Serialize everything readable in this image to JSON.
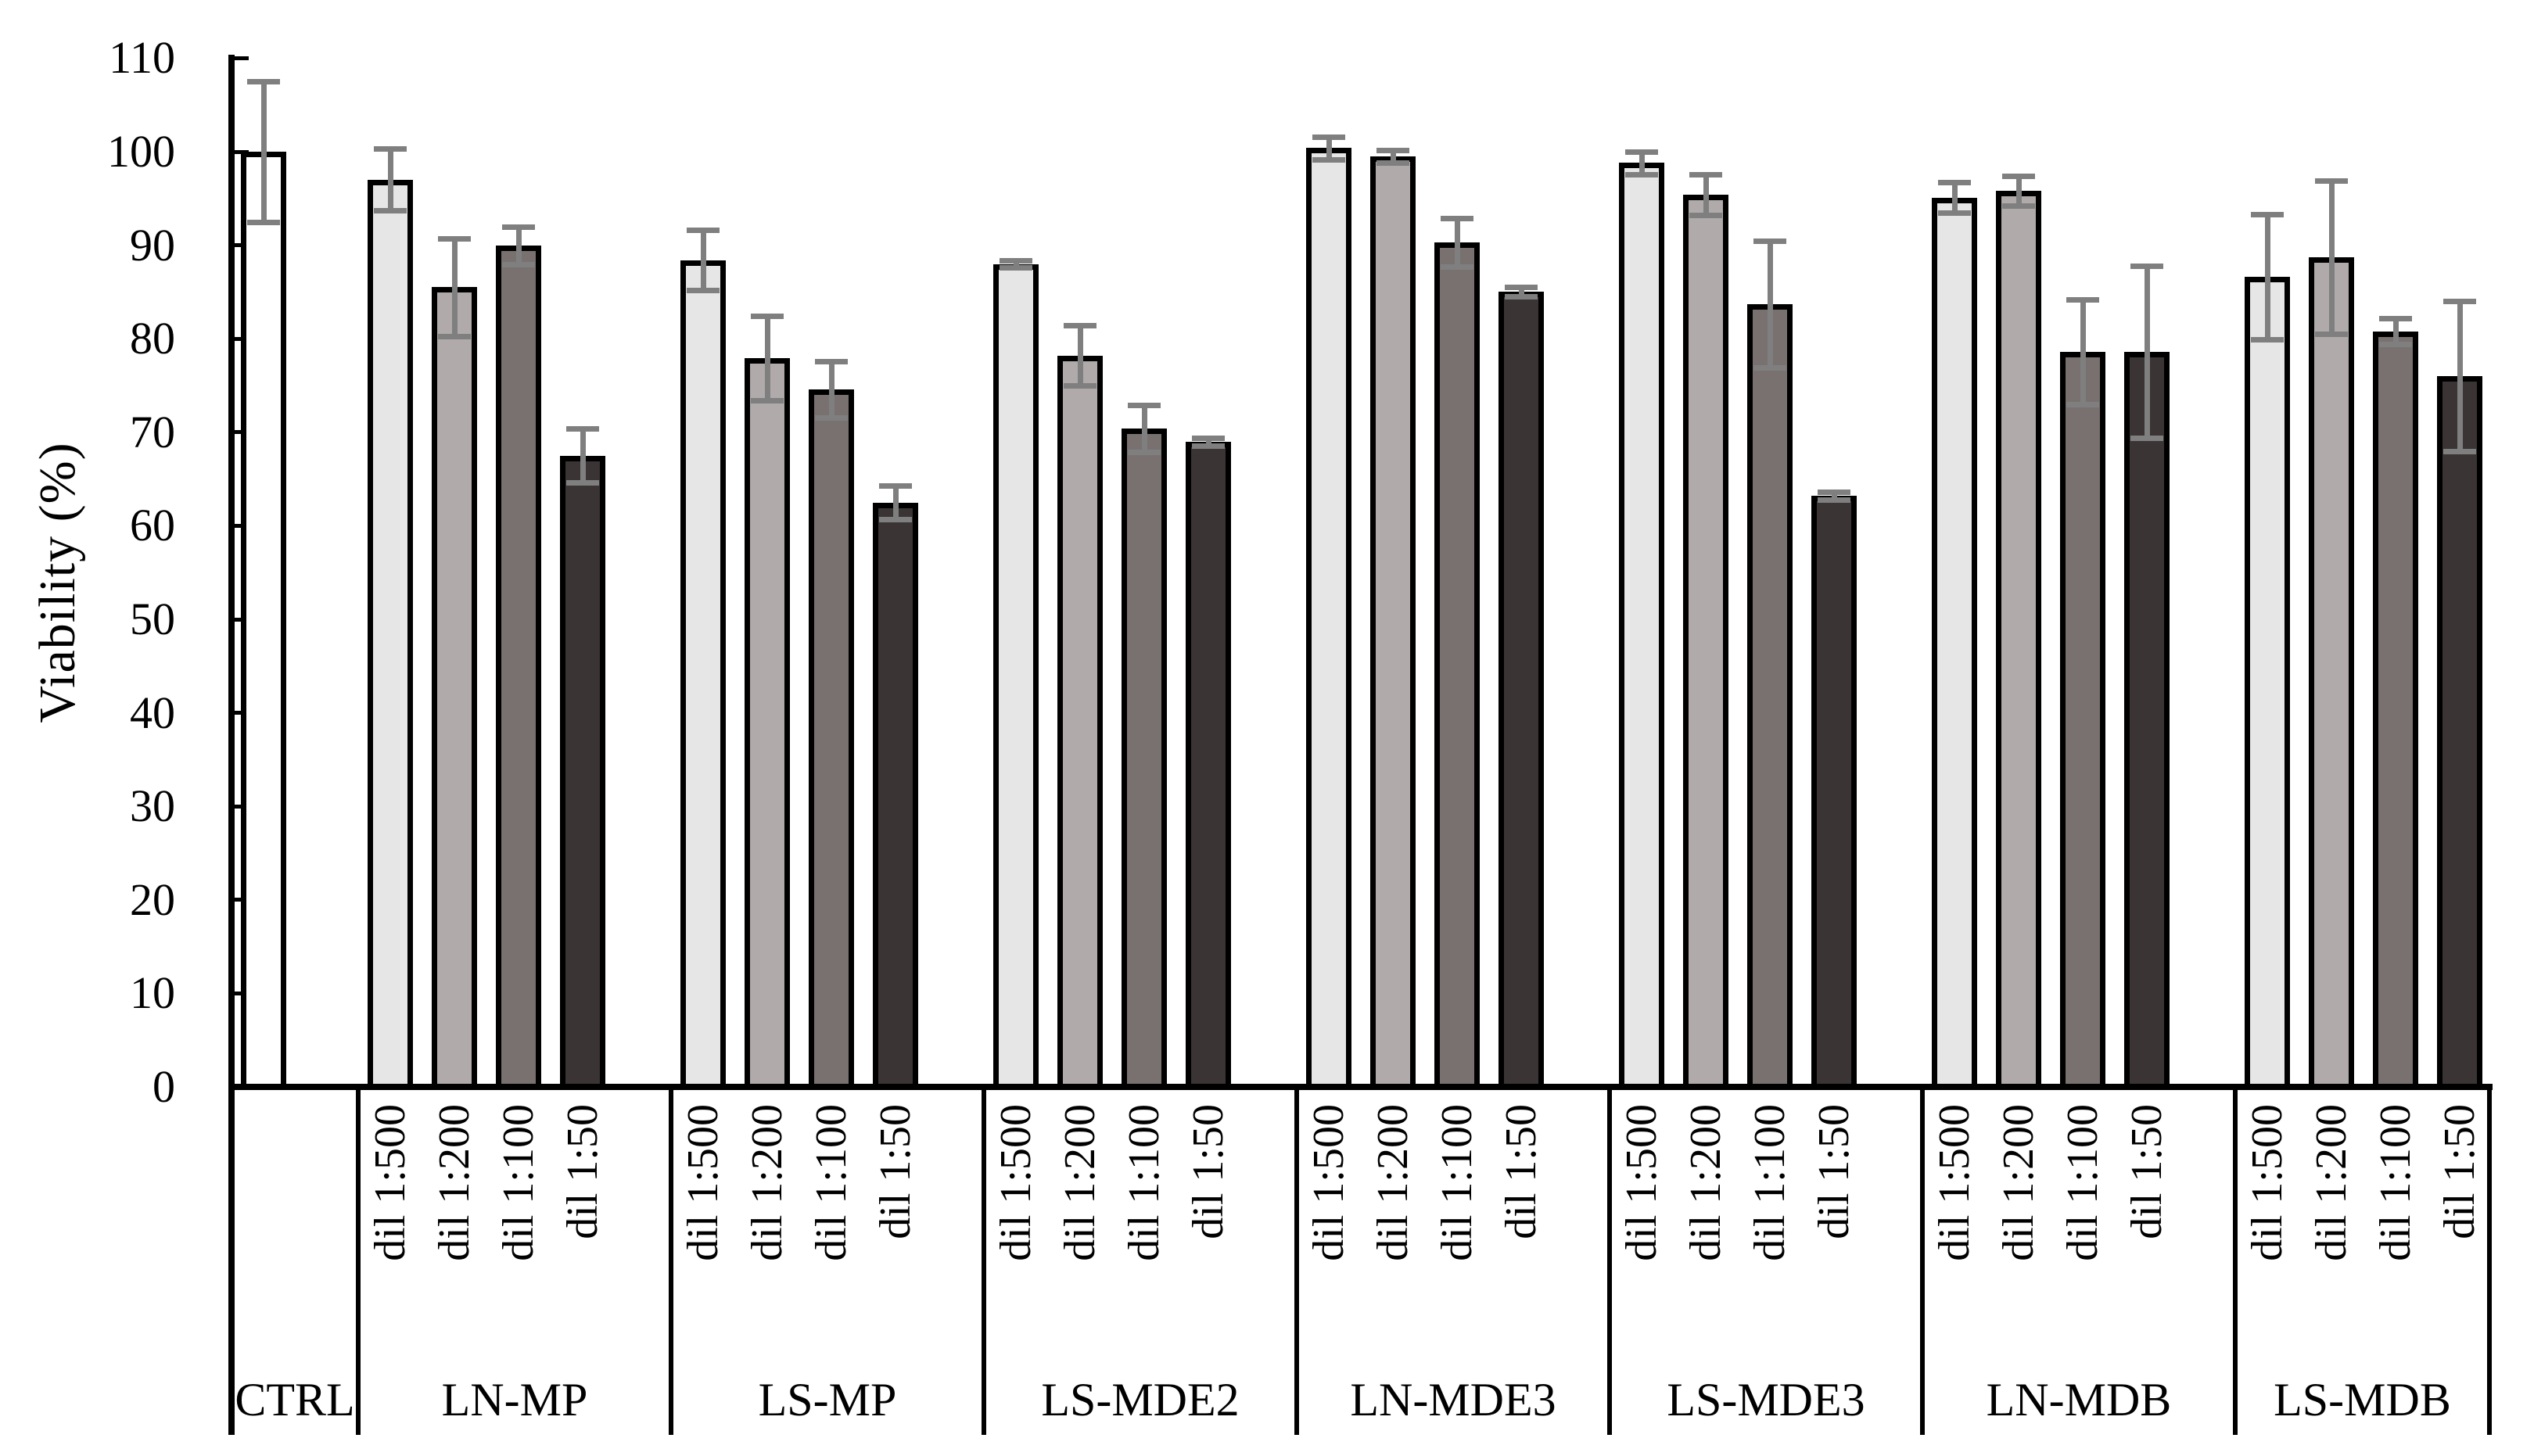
{
  "figure": {
    "background": "#ffffff",
    "title": ""
  },
  "chart_data": {
    "type": "bar",
    "title": "",
    "xlabel": "",
    "ylabel": "Viability (%)",
    "ylim": [
      0,
      110
    ],
    "ytick_step": 10,
    "ytick_labels": [
      "0",
      "10",
      "20",
      "30",
      "40",
      "50",
      "60",
      "70",
      "80",
      "90",
      "100",
      "110"
    ],
    "grid": false,
    "legend_position": "none",
    "error_bars": true,
    "error_bar_color": "#7f7f7f",
    "outline_color": "#000000",
    "bar_colors": {
      "CTRL": "#ffffff",
      "dil 1:500": "#e7e6e6",
      "dil 1:200": "#b0abaa",
      "dil 1:100": "#797170",
      "dil 1:50": "#3a3434"
    },
    "dilution_labels": [
      "dil 1:500",
      "dil 1:200",
      "dil 1:100",
      "dil 1:50"
    ],
    "groups": [
      {
        "label": "CTRL",
        "bars": [
          {
            "dilution": "CTRL",
            "value": 100.0,
            "error": 7.5,
            "color_key": "CTRL"
          }
        ]
      },
      {
        "label": "LN-MP",
        "bars": [
          {
            "dilution": "dil 1:500",
            "value": 97.0,
            "error": 3.3,
            "color_key": "dil 1:500"
          },
          {
            "dilution": "dil 1:200",
            "value": 85.5,
            "error": 5.2,
            "color_key": "dil 1:200"
          },
          {
            "dilution": "dil 1:100",
            "value": 90.0,
            "error": 2.0,
            "color_key": "dil 1:100"
          },
          {
            "dilution": "dil 1:50",
            "value": 67.5,
            "error": 2.9,
            "color_key": "dil 1:50"
          }
        ]
      },
      {
        "label": "LS-MP",
        "bars": [
          {
            "dilution": "dil 1:500",
            "value": 88.4,
            "error": 3.2,
            "color_key": "dil 1:500"
          },
          {
            "dilution": "dil 1:200",
            "value": 77.9,
            "error": 4.5,
            "color_key": "dil 1:200"
          },
          {
            "dilution": "dil 1:100",
            "value": 74.6,
            "error": 3.0,
            "color_key": "dil 1:100"
          },
          {
            "dilution": "dil 1:50",
            "value": 62.5,
            "error": 1.8,
            "color_key": "dil 1:50"
          }
        ]
      },
      {
        "label": "LS-MDE2",
        "bars": [
          {
            "dilution": "dil 1:500",
            "value": 88.0,
            "error": 0.4,
            "color_key": "dil 1:500"
          },
          {
            "dilution": "dil 1:200",
            "value": 78.2,
            "error": 3.2,
            "color_key": "dil 1:200"
          },
          {
            "dilution": "dil 1:100",
            "value": 70.4,
            "error": 2.5,
            "color_key": "dil 1:100"
          },
          {
            "dilution": "dil 1:50",
            "value": 69.0,
            "error": 0.4,
            "color_key": "dil 1:50"
          }
        ]
      },
      {
        "label": "LN-MDE3",
        "bars": [
          {
            "dilution": "dil 1:500",
            "value": 100.4,
            "error": 1.2,
            "color_key": "dil 1:500"
          },
          {
            "dilution": "dil 1:200",
            "value": 99.5,
            "error": 0.7,
            "color_key": "dil 1:200"
          },
          {
            "dilution": "dil 1:100",
            "value": 90.3,
            "error": 2.6,
            "color_key": "dil 1:100"
          },
          {
            "dilution": "dil 1:50",
            "value": 85.0,
            "error": 0.5,
            "color_key": "dil 1:50"
          }
        ]
      },
      {
        "label": "LS-MDE3",
        "bars": [
          {
            "dilution": "dil 1:500",
            "value": 98.8,
            "error": 1.2,
            "color_key": "dil 1:500"
          },
          {
            "dilution": "dil 1:200",
            "value": 95.4,
            "error": 2.2,
            "color_key": "dil 1:200"
          },
          {
            "dilution": "dil 1:100",
            "value": 83.7,
            "error": 6.8,
            "color_key": "dil 1:100"
          },
          {
            "dilution": "dil 1:50",
            "value": 63.2,
            "error": 0.4,
            "color_key": "dil 1:50"
          }
        ]
      },
      {
        "label": "LN-MDB",
        "bars": [
          {
            "dilution": "dil 1:500",
            "value": 95.1,
            "error": 1.6,
            "color_key": "dil 1:500"
          },
          {
            "dilution": "dil 1:200",
            "value": 95.8,
            "error": 1.6,
            "color_key": "dil 1:200"
          },
          {
            "dilution": "dil 1:100",
            "value": 78.6,
            "error": 5.6,
            "color_key": "dil 1:100"
          },
          {
            "dilution": "dil 1:50",
            "value": 78.6,
            "error": 9.2,
            "color_key": "dil 1:50"
          }
        ]
      },
      {
        "label": "LS-MDB",
        "bars": [
          {
            "dilution": "dil 1:500",
            "value": 86.6,
            "error": 6.7,
            "color_key": "dil 1:500"
          },
          {
            "dilution": "dil 1:200",
            "value": 88.7,
            "error": 8.2,
            "color_key": "dil 1:200"
          },
          {
            "dilution": "dil 1:100",
            "value": 80.8,
            "error": 1.4,
            "color_key": "dil 1:100"
          },
          {
            "dilution": "dil 1:50",
            "value": 76.0,
            "error": 8.0,
            "color_key": "dil 1:50"
          }
        ]
      }
    ]
  }
}
